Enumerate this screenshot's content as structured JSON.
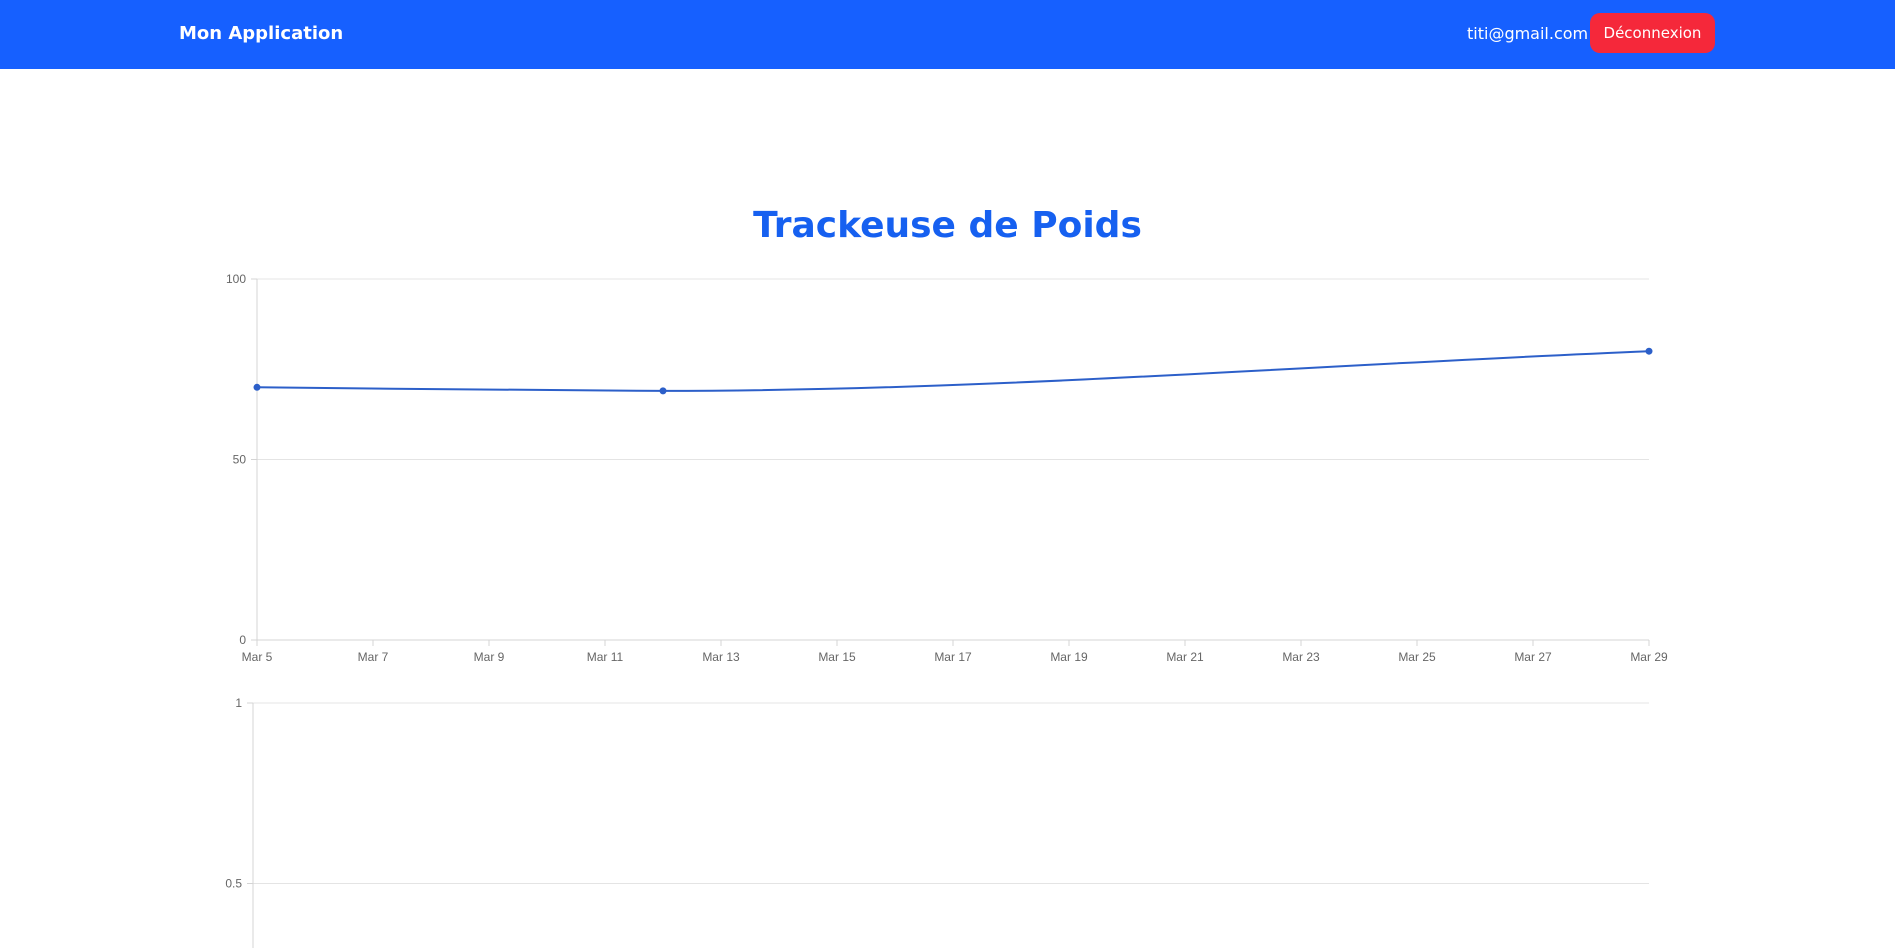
{
  "navbar": {
    "brand": "Mon Application",
    "user_email": "titi@gmail.com",
    "logout_label": "Déconnexion",
    "background_color": "#1660ff",
    "logout_color": "#f5283a"
  },
  "page": {
    "title": "Trackeuse de Poids",
    "title_color": "#1660f0"
  },
  "chart_data": [
    {
      "type": "line",
      "title": "",
      "xlabel": "",
      "ylabel": "",
      "x_ticks": [
        "Mar 5",
        "Mar 7",
        "Mar 9",
        "Mar 11",
        "Mar 13",
        "Mar 15",
        "Mar 17",
        "Mar 19",
        "Mar 21",
        "Mar 23",
        "Mar 25",
        "Mar 27",
        "Mar 29"
      ],
      "xlim": [
        "Mar 5",
        "Mar 29"
      ],
      "y_ticks": [
        "0",
        "50",
        "100"
      ],
      "ylim": [
        0,
        100
      ],
      "grid": true,
      "line_color": "#2c5fc9",
      "series": [
        {
          "x": [
            "Mar 5",
            "Mar 12",
            "Mar 29"
          ],
          "values": [
            70,
            69,
            80
          ]
        }
      ]
    },
    {
      "type": "line",
      "title": "",
      "xlabel": "",
      "ylabel": "",
      "y_ticks": [
        "0.5",
        "1"
      ],
      "ylim": [
        0,
        1
      ],
      "grid": true,
      "series": []
    }
  ]
}
